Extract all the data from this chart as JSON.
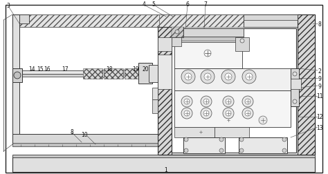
{
  "white": "#ffffff",
  "light_gray": "#e8e8e8",
  "mid_gray": "#d0d0d0",
  "dark_gray": "#aaaaaa",
  "line_col": "#333333",
  "label_col": "#111111",
  "hatch_fc": "#dddddd",
  "labels_top": [
    [
      "3",
      12,
      10
    ],
    [
      "4",
      208,
      6
    ],
    [
      "5",
      222,
      6
    ],
    [
      "6",
      271,
      6
    ],
    [
      "7",
      297,
      6
    ]
  ],
  "labels_right": [
    [
      "8",
      460,
      38
    ],
    [
      "2",
      460,
      105
    ],
    [
      "9",
      460,
      116
    ],
    [
      "9",
      460,
      128
    ],
    [
      "11",
      460,
      140
    ],
    [
      "12",
      460,
      172
    ],
    [
      "13",
      460,
      188
    ]
  ],
  "labels_bottom": [
    [
      "1",
      240,
      247
    ]
  ],
  "labels_left_lower": [
    [
      "8",
      104,
      192
    ],
    [
      "10",
      122,
      197
    ]
  ],
  "labels_shaft": [
    [
      "14",
      46,
      100
    ],
    [
      "15",
      57,
      100
    ],
    [
      "16",
      67,
      100
    ],
    [
      "17",
      96,
      100
    ],
    [
      "18",
      158,
      100
    ],
    [
      "19",
      196,
      100
    ],
    [
      "20",
      210,
      100
    ]
  ]
}
